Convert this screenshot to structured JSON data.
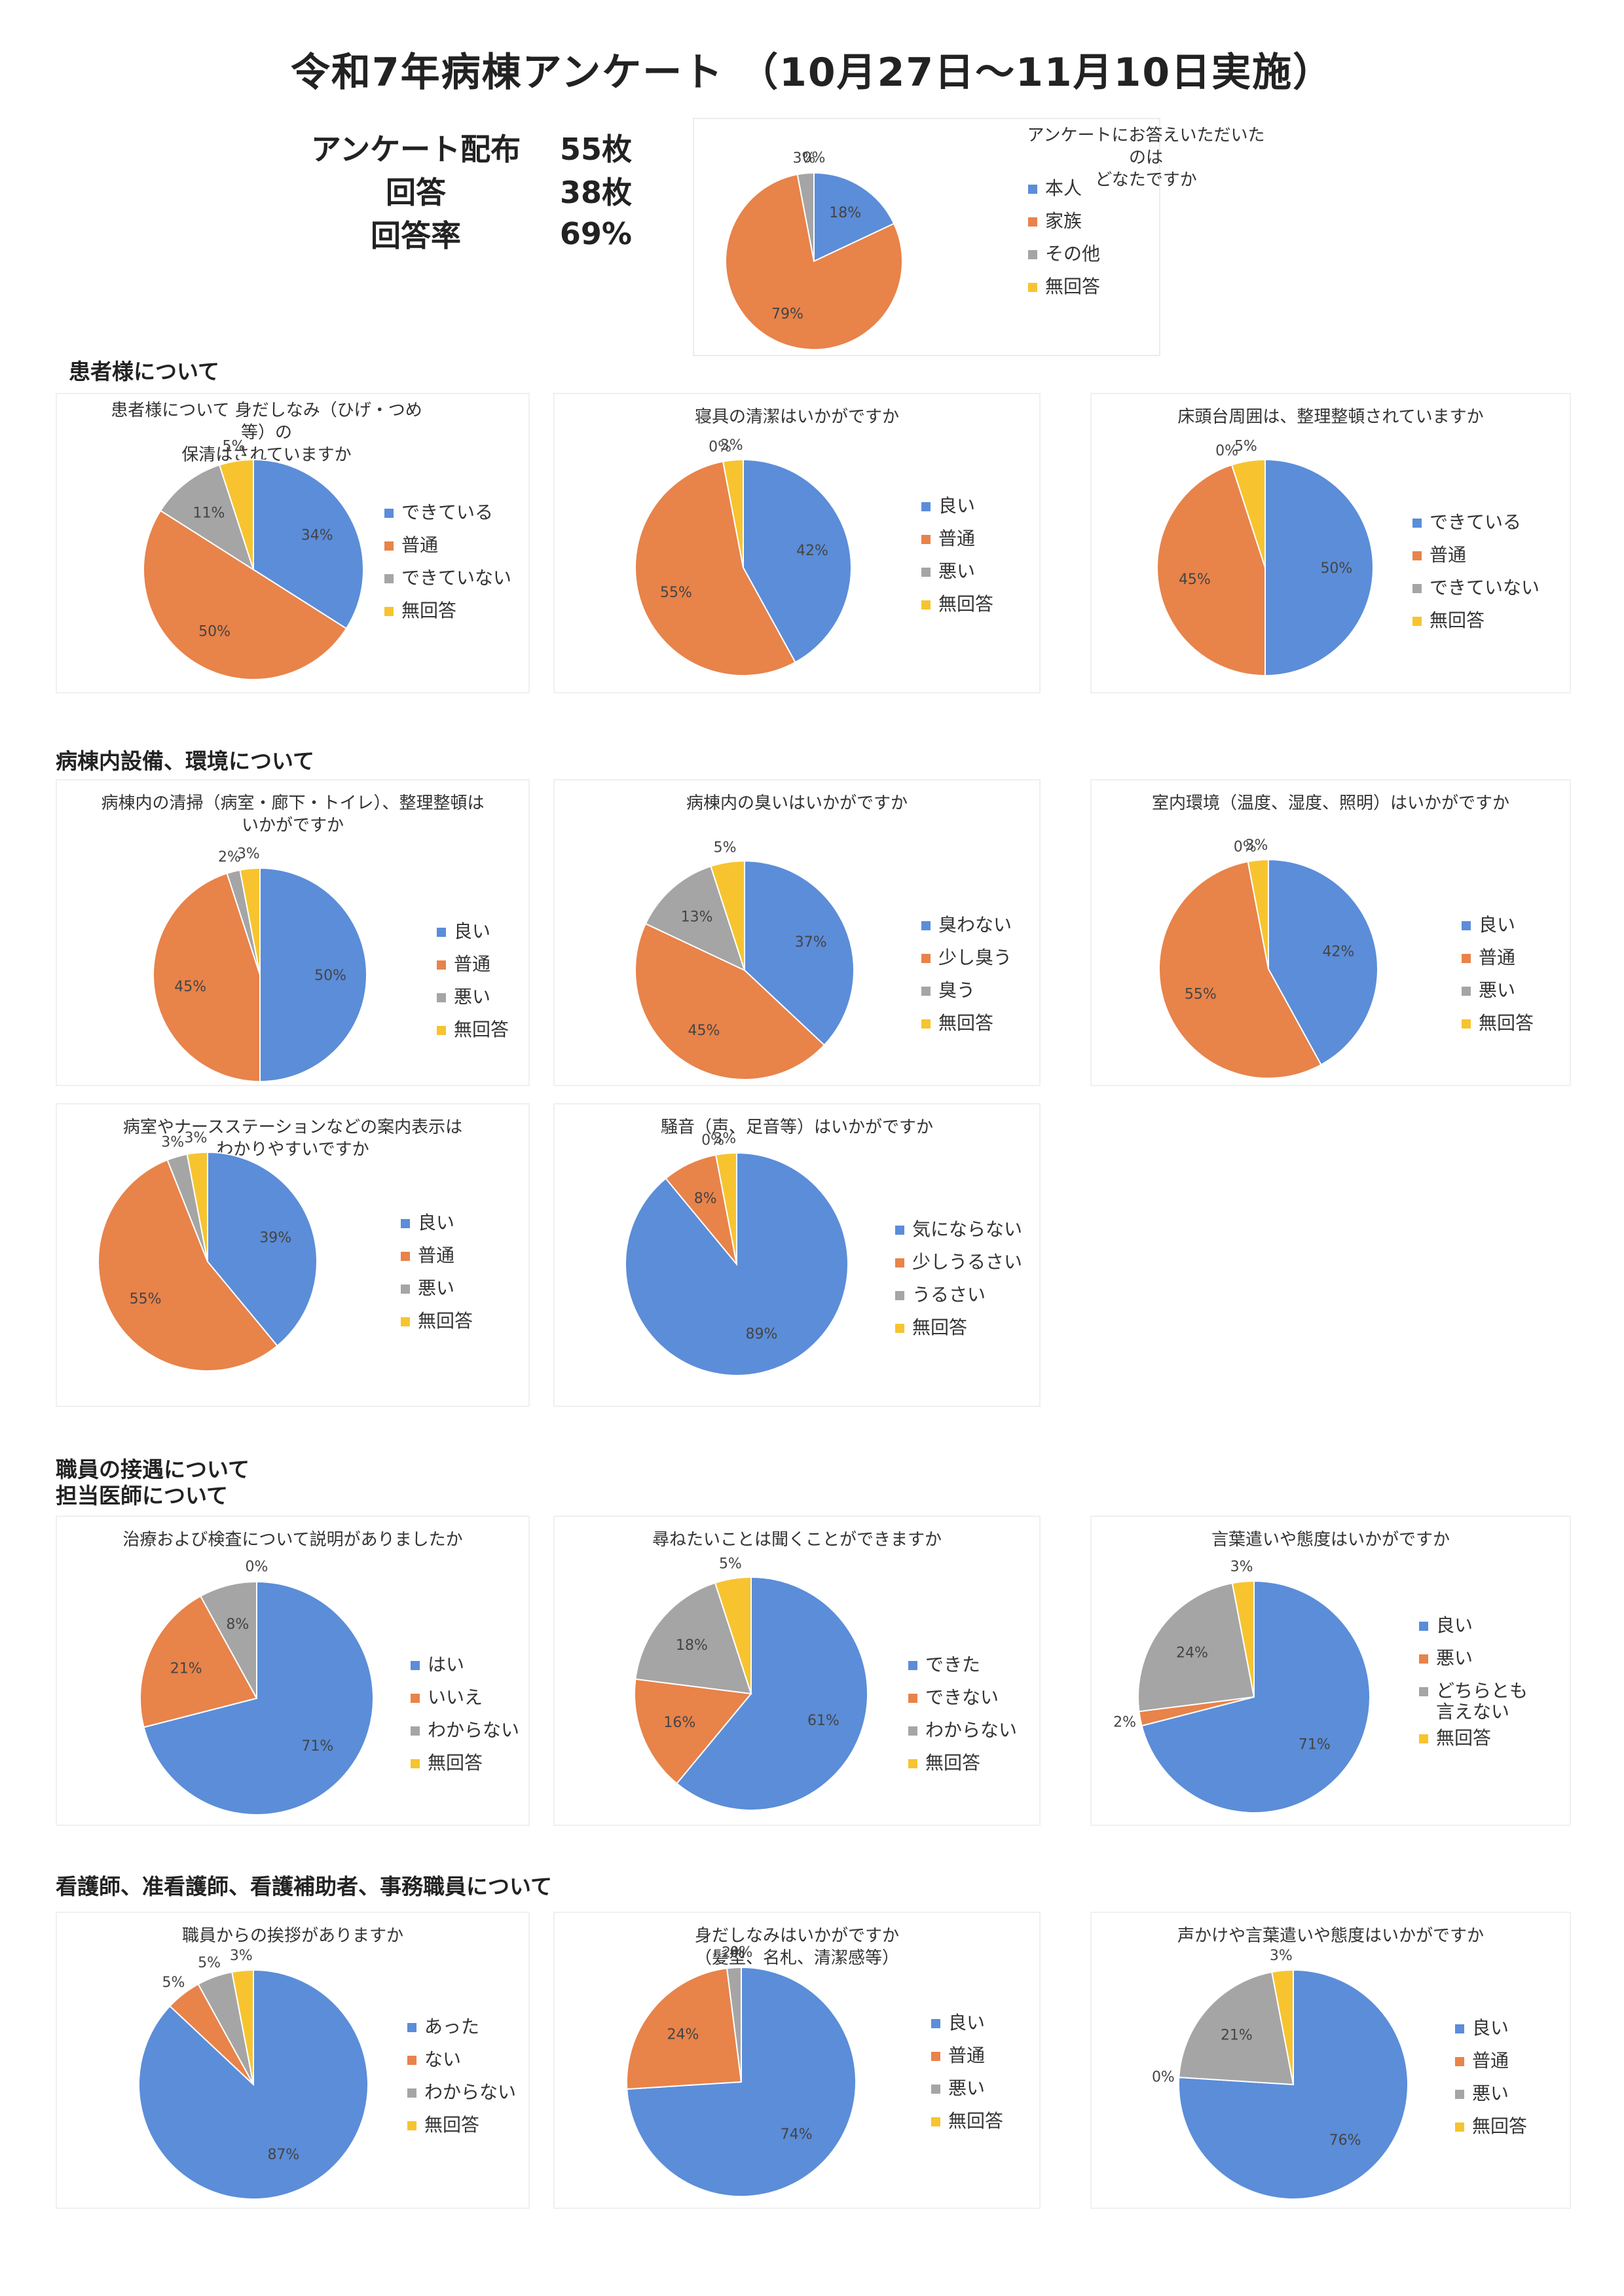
{
  "page_title": "令和7年病棟アンケート （10月27日～11月10日実施）",
  "stats": [
    {
      "label": "アンケート配布",
      "value": "55枚"
    },
    {
      "label": "回答",
      "value": "38枚"
    },
    {
      "label": "回答率",
      "value": "69%"
    }
  ],
  "colors": {
    "blue": "#5b8dd9",
    "orange": "#e8834a",
    "gray": "#a5a5a5",
    "yellow": "#f7c430"
  },
  "sections": {
    "patient": "患者様について",
    "facility": "病棟内設備、環境について",
    "staff_heading": "職員の接遇について",
    "doctor": "担当医師について",
    "nurse": "看護師、准看護師、看護補助者、事務職員について"
  },
  "chart_data": [
    {
      "type": "pie",
      "title": "アンケートにお答えいただいたのは\nどなたですか",
      "categories": [
        "本人",
        "家族",
        "その他",
        "無回答"
      ],
      "values": [
        18,
        79,
        3,
        0
      ],
      "labels": [
        "18%",
        "79%",
        "3%",
        "0%"
      ]
    },
    {
      "type": "pie",
      "title": "患者様について 身だしなみ（ひげ・つめ等）の\n保清はされていますか",
      "categories": [
        "できている",
        "普通",
        "できていない",
        "無回答"
      ],
      "values": [
        34,
        50,
        11,
        5
      ],
      "labels": [
        "34%",
        "50%",
        "11%",
        "5%"
      ]
    },
    {
      "type": "pie",
      "title": "寝具の清潔はいかがですか",
      "categories": [
        "良い",
        "普通",
        "悪い",
        "無回答"
      ],
      "values": [
        42,
        55,
        0,
        3
      ],
      "labels": [
        "42%",
        "55%",
        "0%",
        "3%"
      ]
    },
    {
      "type": "pie",
      "title": "床頭台周囲は、整理整頓されていますか",
      "categories": [
        "できている",
        "普通",
        "できていない",
        "無回答"
      ],
      "values": [
        50,
        45,
        0,
        5
      ],
      "labels": [
        "50%",
        "45%",
        "0%",
        "5%"
      ]
    },
    {
      "type": "pie",
      "title": "病棟内の清掃（病室・廊下・トイレ）、整理整頓は\nいかがですか",
      "categories": [
        "良い",
        "普通",
        "悪い",
        "無回答"
      ],
      "values": [
        50,
        45,
        2,
        3
      ],
      "labels": [
        "50%",
        "45%",
        "2%",
        "3%"
      ]
    },
    {
      "type": "pie",
      "title": "病棟内の臭いはいかがですか",
      "categories": [
        "臭わない",
        "少し臭う",
        "臭う",
        "無回答"
      ],
      "values": [
        37,
        45,
        13,
        5
      ],
      "labels": [
        "37%",
        "45%",
        "13%",
        "5%"
      ]
    },
    {
      "type": "pie",
      "title": "室内環境（温度、湿度、照明）はいかがですか",
      "categories": [
        "良い",
        "普通",
        "悪い",
        "無回答"
      ],
      "values": [
        42,
        55,
        0,
        3
      ],
      "labels": [
        "42%",
        "55%",
        "0%",
        "3%"
      ]
    },
    {
      "type": "pie",
      "title": "病室やナースステーションなどの案内表示は\nわかりやすいですか",
      "categories": [
        "良い",
        "普通",
        "悪い",
        "無回答"
      ],
      "values": [
        39,
        55,
        3,
        3
      ],
      "labels": [
        "39%",
        "55%",
        "3%",
        "3%"
      ]
    },
    {
      "type": "pie",
      "title": "騒音（声、足音等）はいかがですか",
      "categories": [
        "気にならない",
        "少しうるさい",
        "うるさい",
        "無回答"
      ],
      "values": [
        89,
        8,
        0,
        3
      ],
      "labels": [
        "89%",
        "8%",
        "0%",
        "3%"
      ]
    },
    {
      "type": "pie",
      "title": "治療および検査について説明がありましたか",
      "categories": [
        "はい",
        "いいえ",
        "わからない",
        "無回答"
      ],
      "values": [
        71,
        21,
        8,
        0
      ],
      "labels": [
        "71%",
        "21%",
        "8%",
        "0%"
      ]
    },
    {
      "type": "pie",
      "title": "尋ねたいことは聞くことができますか",
      "categories": [
        "できた",
        "できない",
        "わからない",
        "無回答"
      ],
      "values": [
        61,
        16,
        18,
        5
      ],
      "labels": [
        "61%",
        "16%",
        "18%",
        "5%"
      ]
    },
    {
      "type": "pie",
      "title": "言葉遣いや態度はいかがですか",
      "categories": [
        "良い",
        "悪い",
        "どちらとも\n言えない",
        "無回答"
      ],
      "values": [
        71,
        2,
        24,
        3
      ],
      "labels": [
        "71%",
        "2%",
        "24%",
        "3%"
      ]
    },
    {
      "type": "pie",
      "title": "職員からの挨拶がありますか",
      "categories": [
        "あった",
        "ない",
        "わからない",
        "無回答"
      ],
      "values": [
        87,
        5,
        5,
        3
      ],
      "labels": [
        "87%",
        "5%",
        "5%",
        "3%"
      ]
    },
    {
      "type": "pie",
      "title": "身だしなみはいかがですか\n（髪型、名札、清潔感等）",
      "categories": [
        "良い",
        "普通",
        "悪い",
        "無回答"
      ],
      "values": [
        74,
        24,
        2,
        0
      ],
      "labels": [
        "74%",
        "24%",
        "2%",
        "0%"
      ]
    },
    {
      "type": "pie",
      "title": "声かけや言葉遣いや態度はいかがですか",
      "categories": [
        "良い",
        "普通",
        "悪い",
        "無回答"
      ],
      "values": [
        76,
        0,
        21,
        3
      ],
      "labels": [
        "76%",
        "0%",
        "21%",
        "3%"
      ]
    }
  ]
}
